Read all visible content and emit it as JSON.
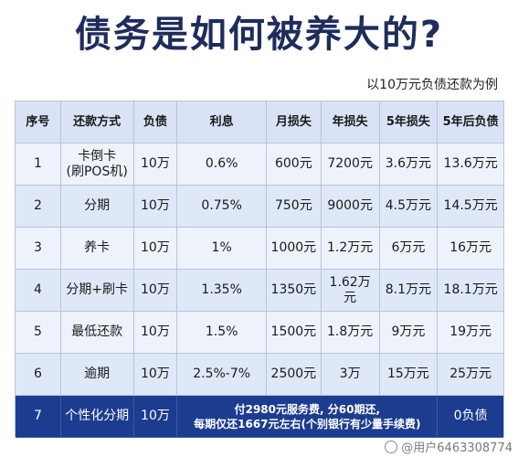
{
  "title": "债务是如何被养大的?",
  "subtitle": "以10万元负债还款为例",
  "table": {
    "headers": [
      "序号",
      "还款方式",
      "负债",
      "利息",
      "月损失",
      "年损失",
      "5年损失",
      "5年后负债"
    ],
    "rows": [
      [
        "1",
        "卡倒卡\n(刷POS机)",
        "10万",
        "0.6%",
        "600元",
        "7200元",
        "3.6万元",
        "13.6万元"
      ],
      [
        "2",
        "分期",
        "10万",
        "0.75%",
        "750元",
        "9000元",
        "4.5万元",
        "14.5万元"
      ],
      [
        "3",
        "养卡",
        "10万",
        "1%",
        "1000元",
        "1.2万元",
        "6万元",
        "16万元"
      ],
      [
        "4",
        "分期+刷卡",
        "10万",
        "1.35%",
        "1350元",
        "1.62万元",
        "8.1万元",
        "18.1万元"
      ],
      [
        "5",
        "最低还款",
        "10万",
        "1.5%",
        "1500元",
        "1.8万元",
        "9万元",
        "19万元"
      ],
      [
        "6",
        "逾期",
        "10万",
        "2.5%-7%",
        "2500元",
        "3万",
        "15万元",
        "25万元"
      ]
    ],
    "last_row": {
      "no": "7",
      "method": "个性化分期",
      "debt": "10万",
      "note": "付2980元服务费, 分60期还,\n每期仅还1667元左右(个别银行有少量手续费)",
      "after": "0负债"
    }
  },
  "watermark": "@用户6463308774",
  "colors": {
    "title": "#1f2d5c",
    "header_bg": "#d9e3f5",
    "row_bg": "#dfe8f7",
    "highlight_bg": "#1c3d8f"
  }
}
